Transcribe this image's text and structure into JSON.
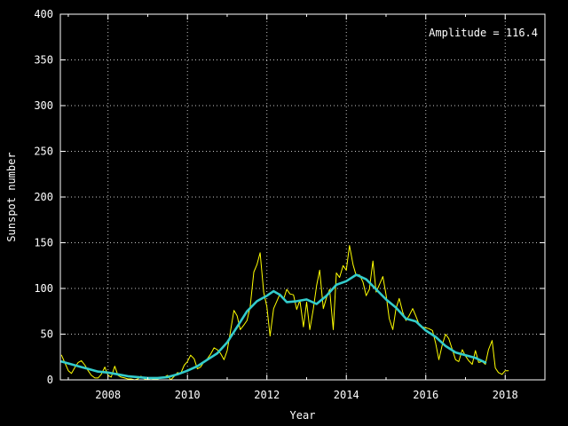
{
  "chart_data": {
    "type": "line",
    "xlabel": "Year",
    "ylabel": "Sunspot number",
    "annotation": "Amplitude = 116.4",
    "xlim": [
      2006.8,
      2019.0
    ],
    "ylim": [
      0,
      400
    ],
    "x_ticks": [
      2008,
      2010,
      2012,
      2014,
      2016,
      2018
    ],
    "y_ticks": [
      0,
      50,
      100,
      150,
      200,
      250,
      300,
      350,
      400
    ],
    "grid": true,
    "background": "#000000",
    "axis_color": "#ffffff",
    "grid_color": "#c8c8c8",
    "series": [
      {
        "color": "#ffff00",
        "points": [
          [
            2006.83,
            27
          ],
          [
            2006.92,
            18
          ],
          [
            2007.0,
            10
          ],
          [
            2007.08,
            7
          ],
          [
            2007.17,
            14
          ],
          [
            2007.25,
            19
          ],
          [
            2007.33,
            21
          ],
          [
            2007.42,
            16
          ],
          [
            2007.5,
            10
          ],
          [
            2007.58,
            5
          ],
          [
            2007.67,
            2
          ],
          [
            2007.75,
            2
          ],
          [
            2007.83,
            6
          ],
          [
            2007.92,
            14
          ],
          [
            2008.0,
            5
          ],
          [
            2008.08,
            3
          ],
          [
            2008.17,
            15
          ],
          [
            2008.25,
            5
          ],
          [
            2008.33,
            3
          ],
          [
            2008.42,
            2
          ],
          [
            2008.5,
            1
          ],
          [
            2008.58,
            1
          ],
          [
            2008.67,
            0
          ],
          [
            2008.75,
            1
          ],
          [
            2008.83,
            4
          ],
          [
            2008.92,
            1
          ],
          [
            2009.0,
            1
          ],
          [
            2009.08,
            0
          ],
          [
            2009.17,
            1
          ],
          [
            2009.25,
            1
          ],
          [
            2009.33,
            2
          ],
          [
            2009.42,
            3
          ],
          [
            2009.5,
            5
          ],
          [
            2009.58,
            0
          ],
          [
            2009.67,
            4
          ],
          [
            2009.75,
            8
          ],
          [
            2009.83,
            7
          ],
          [
            2009.92,
            16
          ],
          [
            2010.0,
            20
          ],
          [
            2010.08,
            27
          ],
          [
            2010.17,
            23
          ],
          [
            2010.25,
            12
          ],
          [
            2010.33,
            14
          ],
          [
            2010.42,
            20
          ],
          [
            2010.5,
            23
          ],
          [
            2010.58,
            28
          ],
          [
            2010.67,
            35
          ],
          [
            2010.75,
            33
          ],
          [
            2010.83,
            29
          ],
          [
            2010.92,
            22
          ],
          [
            2011.0,
            32
          ],
          [
            2011.08,
            52
          ],
          [
            2011.17,
            76
          ],
          [
            2011.25,
            70
          ],
          [
            2011.33,
            55
          ],
          [
            2011.42,
            60
          ],
          [
            2011.5,
            65
          ],
          [
            2011.58,
            80
          ],
          [
            2011.67,
            118
          ],
          [
            2011.75,
            126
          ],
          [
            2011.83,
            139
          ],
          [
            2011.92,
            96
          ],
          [
            2012.0,
            80
          ],
          [
            2012.08,
            48
          ],
          [
            2012.17,
            78
          ],
          [
            2012.25,
            86
          ],
          [
            2012.33,
            94
          ],
          [
            2012.42,
            88
          ],
          [
            2012.5,
            99
          ],
          [
            2012.58,
            94
          ],
          [
            2012.67,
            93
          ],
          [
            2012.75,
            77
          ],
          [
            2012.83,
            87
          ],
          [
            2012.92,
            58
          ],
          [
            2013.0,
            85
          ],
          [
            2013.08,
            55
          ],
          [
            2013.17,
            78
          ],
          [
            2013.25,
            103
          ],
          [
            2013.33,
            120
          ],
          [
            2013.42,
            78
          ],
          [
            2013.5,
            90
          ],
          [
            2013.58,
            99
          ],
          [
            2013.67,
            55
          ],
          [
            2013.75,
            117
          ],
          [
            2013.83,
            112
          ],
          [
            2013.92,
            125
          ],
          [
            2014.0,
            120
          ],
          [
            2014.08,
            147
          ],
          [
            2014.17,
            126
          ],
          [
            2014.25,
            114
          ],
          [
            2014.33,
            115
          ],
          [
            2014.42,
            107
          ],
          [
            2014.5,
            92
          ],
          [
            2014.58,
            99
          ],
          [
            2014.67,
            130
          ],
          [
            2014.75,
            96
          ],
          [
            2014.83,
            104
          ],
          [
            2014.92,
            113
          ],
          [
            2015.0,
            93
          ],
          [
            2015.08,
            67
          ],
          [
            2015.17,
            55
          ],
          [
            2015.25,
            78
          ],
          [
            2015.33,
            89
          ],
          [
            2015.42,
            74
          ],
          [
            2015.5,
            65
          ],
          [
            2015.58,
            70
          ],
          [
            2015.67,
            78
          ],
          [
            2015.75,
            70
          ],
          [
            2015.83,
            61
          ],
          [
            2015.92,
            58
          ],
          [
            2016.0,
            57
          ],
          [
            2016.08,
            56
          ],
          [
            2016.17,
            54
          ],
          [
            2016.25,
            40
          ],
          [
            2016.33,
            22
          ],
          [
            2016.42,
            39
          ],
          [
            2016.5,
            50
          ],
          [
            2016.58,
            45
          ],
          [
            2016.67,
            33
          ],
          [
            2016.75,
            22
          ],
          [
            2016.83,
            20
          ],
          [
            2016.92,
            33
          ],
          [
            2017.0,
            26
          ],
          [
            2017.08,
            21
          ],
          [
            2017.17,
            17
          ],
          [
            2017.25,
            32
          ],
          [
            2017.33,
            19
          ],
          [
            2017.42,
            20
          ],
          [
            2017.5,
            17
          ],
          [
            2017.58,
            33
          ],
          [
            2017.67,
            43
          ],
          [
            2017.75,
            13
          ],
          [
            2017.83,
            8
          ],
          [
            2017.92,
            6
          ],
          [
            2018.0,
            10
          ],
          [
            2018.08,
            10
          ]
        ]
      },
      {
        "color": "#33cccc",
        "points": [
          [
            2006.83,
            20
          ],
          [
            2007.0,
            18
          ],
          [
            2007.25,
            15
          ],
          [
            2007.5,
            12
          ],
          [
            2007.75,
            9
          ],
          [
            2008.0,
            8
          ],
          [
            2008.25,
            6
          ],
          [
            2008.5,
            4
          ],
          [
            2008.75,
            3
          ],
          [
            2009.0,
            2
          ],
          [
            2009.25,
            2
          ],
          [
            2009.5,
            3
          ],
          [
            2009.75,
            6
          ],
          [
            2010.0,
            10
          ],
          [
            2010.25,
            15
          ],
          [
            2010.5,
            22
          ],
          [
            2010.75,
            29
          ],
          [
            2011.0,
            41
          ],
          [
            2011.25,
            58
          ],
          [
            2011.5,
            75
          ],
          [
            2011.75,
            86
          ],
          [
            2012.0,
            92
          ],
          [
            2012.17,
            97
          ],
          [
            2012.33,
            93
          ],
          [
            2012.5,
            85
          ],
          [
            2012.75,
            86
          ],
          [
            2013.0,
            88
          ],
          [
            2013.25,
            83
          ],
          [
            2013.5,
            92
          ],
          [
            2013.75,
            104
          ],
          [
            2014.0,
            108
          ],
          [
            2014.25,
            115
          ],
          [
            2014.5,
            110
          ],
          [
            2014.75,
            99
          ],
          [
            2015.0,
            88
          ],
          [
            2015.25,
            79
          ],
          [
            2015.5,
            67
          ],
          [
            2015.75,
            64
          ],
          [
            2016.0,
            54
          ],
          [
            2016.25,
            47
          ],
          [
            2016.5,
            37
          ],
          [
            2016.75,
            30
          ],
          [
            2017.0,
            27
          ],
          [
            2017.25,
            24
          ],
          [
            2017.5,
            19
          ]
        ]
      }
    ]
  }
}
